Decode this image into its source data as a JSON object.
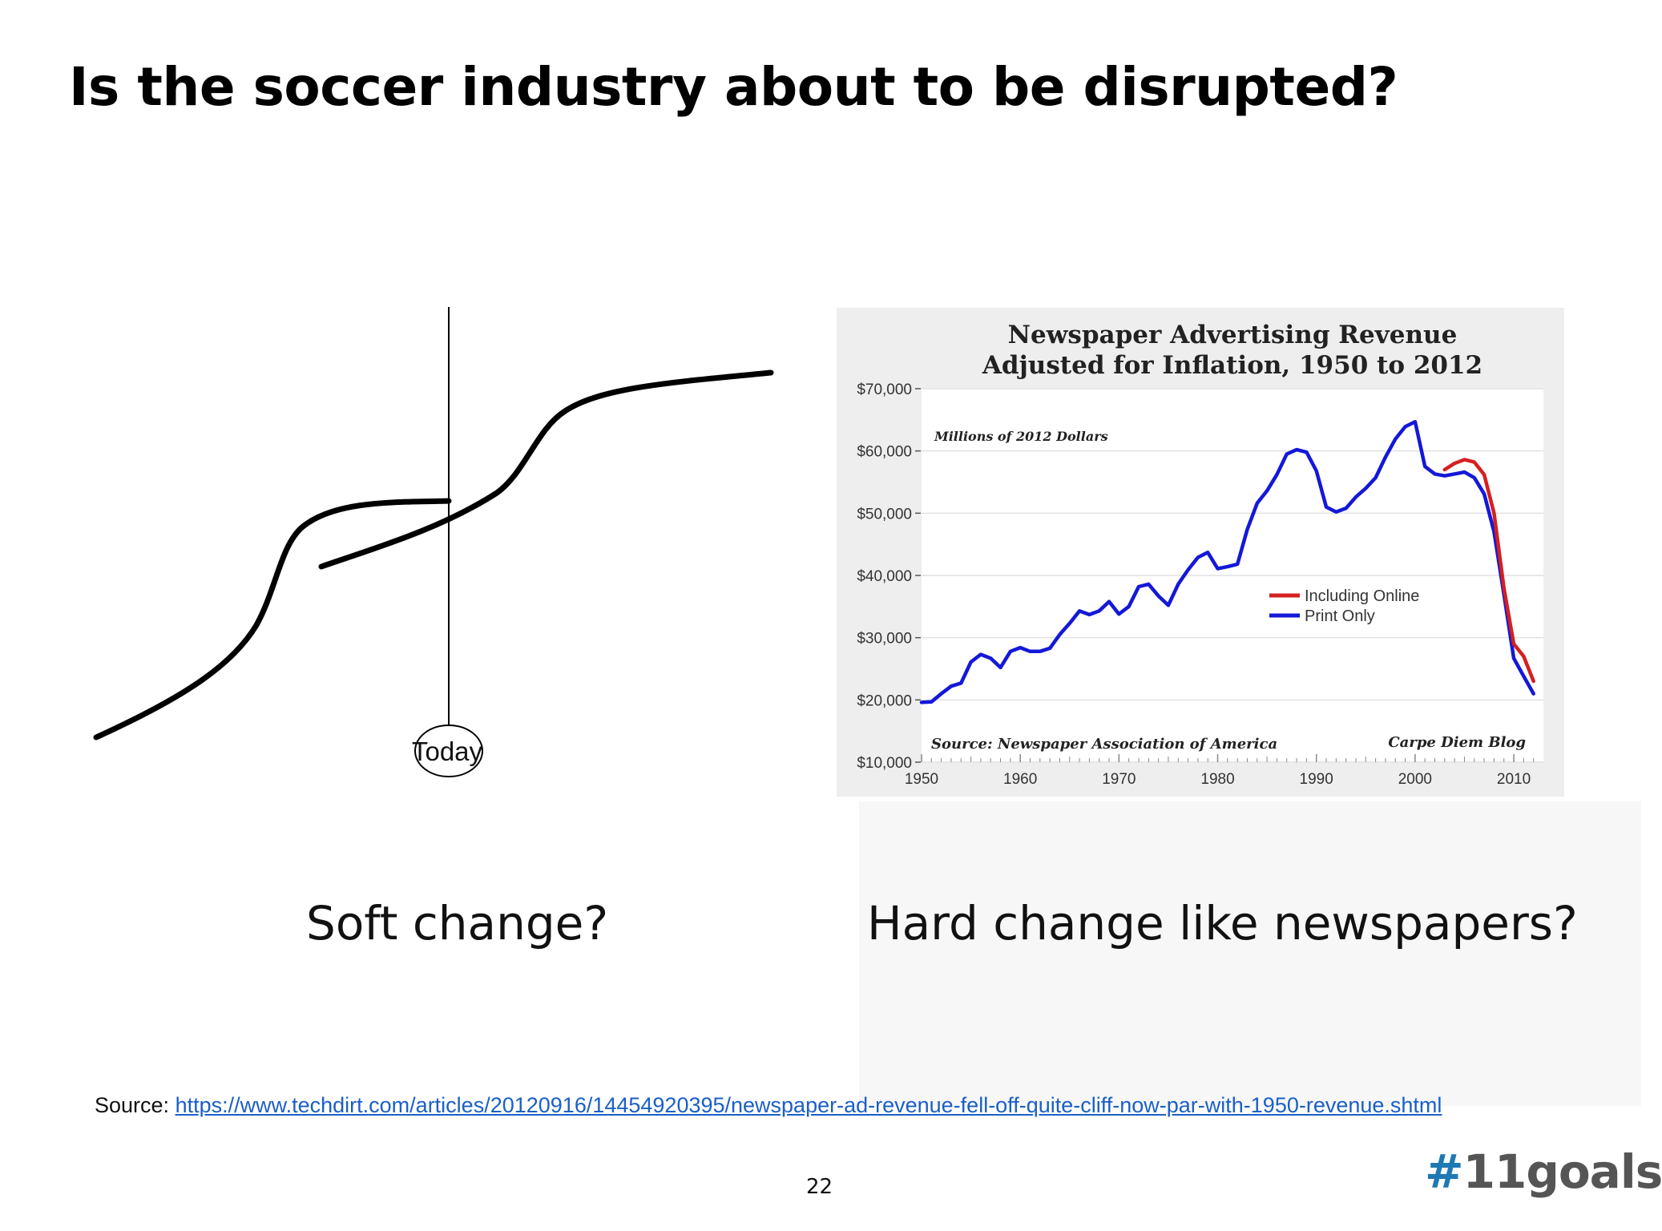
{
  "slide": {
    "title": "Is the soccer industry about to be disrupted?",
    "soft_caption": "Soft change?",
    "hard_caption": "Hard change like newspapers?",
    "source_label": "Source:",
    "source_url": "https://www.techdirt.com/articles/20120916/14454920395/newspaper-ad-revenue-fell-off-quite-cliff-now-par-with-1950-revenue.shtml",
    "page_number": "22",
    "brand_hash": "#",
    "brand_name": "11goals"
  },
  "soft_diagram": {
    "today_label": "Today"
  },
  "chart_data": {
    "type": "line",
    "title": "Newspaper Advertising Revenue",
    "subtitle": "Adjusted for Inflation, 1950 to 2012",
    "ylabel": "Millions of 2012 Dollars",
    "xlabel": "",
    "xlim": [
      1950,
      2013
    ],
    "ylim": [
      10000,
      70000
    ],
    "x_ticks": [
      1950,
      1960,
      1970,
      1980,
      1990,
      2000,
      2010
    ],
    "x_tick_labels": [
      "1950",
      "1960",
      "1970",
      "1980",
      "1990",
      "2000",
      "2010"
    ],
    "y_ticks": [
      10000,
      20000,
      30000,
      40000,
      50000,
      60000,
      70000
    ],
    "y_tick_labels": [
      "$10,000",
      "$20,000",
      "$30,000",
      "$40,000",
      "$50,000",
      "$60,000",
      "$70,000"
    ],
    "grid": true,
    "legend_position": "center-right",
    "source_note": "Source: Newspaper Association of America",
    "credit_note": "Carpe Diem Blog",
    "series": [
      {
        "name": "Including Online",
        "color": "#d42020",
        "x": [
          2003,
          2004,
          2005,
          2006,
          2007,
          2008,
          2009,
          2010,
          2011,
          2012
        ],
        "y": [
          57000,
          58000,
          58600,
          58200,
          56200,
          50000,
          38000,
          29000,
          27000,
          23000
        ]
      },
      {
        "name": "Print Only",
        "color": "#1418d8",
        "x": [
          1950,
          1951,
          1952,
          1953,
          1954,
          1955,
          1956,
          1957,
          1958,
          1959,
          1960,
          1961,
          1962,
          1963,
          1964,
          1965,
          1966,
          1967,
          1968,
          1969,
          1970,
          1971,
          1972,
          1973,
          1974,
          1975,
          1976,
          1977,
          1978,
          1979,
          1980,
          1981,
          1982,
          1983,
          1984,
          1985,
          1986,
          1987,
          1988,
          1989,
          1990,
          1991,
          1992,
          1993,
          1994,
          1995,
          1996,
          1997,
          1998,
          1999,
          2000,
          2001,
          2002,
          2003,
          2004,
          2005,
          2006,
          2007,
          2008,
          2009,
          2010,
          2011,
          2012
        ],
        "y": [
          19600,
          19700,
          21000,
          22200,
          22700,
          26100,
          27300,
          26700,
          25200,
          27800,
          28400,
          27800,
          27800,
          28300,
          30500,
          32300,
          34300,
          33700,
          34300,
          35800,
          33800,
          35000,
          38200,
          38600,
          36700,
          35200,
          38600,
          40900,
          42900,
          43700,
          41100,
          41400,
          41800,
          47400,
          51600,
          53600,
          56200,
          59500,
          60200,
          59800,
          56800,
          51000,
          50200,
          50800,
          52600,
          54000,
          55700,
          59000,
          61900,
          63900,
          64700,
          57500,
          56300,
          56000,
          56300,
          56600,
          55700,
          53100,
          47000,
          37000,
          26700,
          23800,
          21000
        ]
      }
    ]
  }
}
